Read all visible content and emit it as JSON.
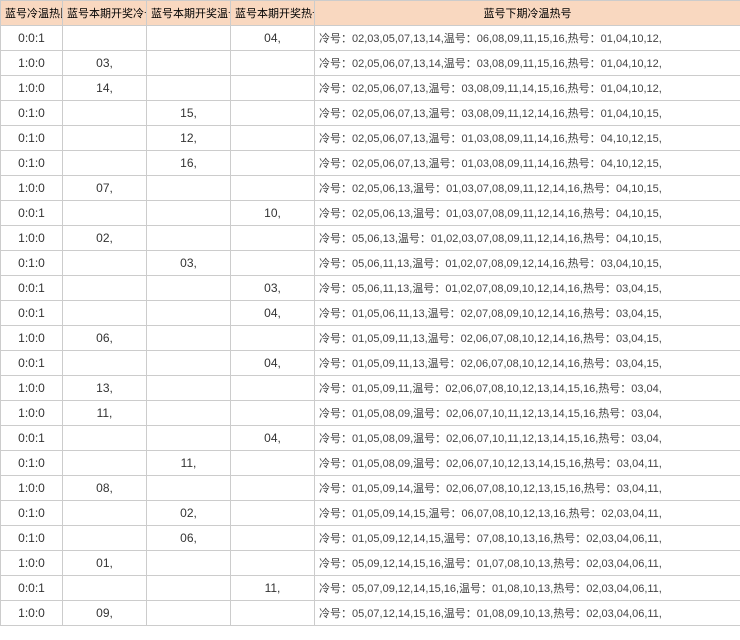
{
  "columns": [
    "蓝号冷温热比",
    "蓝号本期开奖冷号",
    "蓝号本期开奖温号",
    "蓝号本期开奖热号",
    "蓝号下期冷温热号"
  ],
  "rows": [
    {
      "ratio": "0:0:1",
      "cold": "",
      "warm": "",
      "hot": "04,",
      "analysis": "冷号：02,03,05,07,13,14,温号：06,08,09,11,15,16,热号：01,04,10,12,"
    },
    {
      "ratio": "1:0:0",
      "cold": "03,",
      "warm": "",
      "hot": "",
      "analysis": "冷号：02,05,06,07,13,14,温号：03,08,09,11,15,16,热号：01,04,10,12,"
    },
    {
      "ratio": "1:0:0",
      "cold": "14,",
      "warm": "",
      "hot": "",
      "analysis": "冷号：02,05,06,07,13,温号：03,08,09,11,14,15,16,热号：01,04,10,12,"
    },
    {
      "ratio": "0:1:0",
      "cold": "",
      "warm": "15,",
      "hot": "",
      "analysis": "冷号：02,05,06,07,13,温号：03,08,09,11,12,14,16,热号：01,04,10,15,"
    },
    {
      "ratio": "0:1:0",
      "cold": "",
      "warm": "12,",
      "hot": "",
      "analysis": "冷号：02,05,06,07,13,温号：01,03,08,09,11,14,16,热号：04,10,12,15,"
    },
    {
      "ratio": "0:1:0",
      "cold": "",
      "warm": "16,",
      "hot": "",
      "analysis": "冷号：02,05,06,07,13,温号：01,03,08,09,11,14,16,热号：04,10,12,15,"
    },
    {
      "ratio": "1:0:0",
      "cold": "07,",
      "warm": "",
      "hot": "",
      "analysis": "冷号：02,05,06,13,温号：01,03,07,08,09,11,12,14,16,热号：04,10,15,"
    },
    {
      "ratio": "0:0:1",
      "cold": "",
      "warm": "",
      "hot": "10,",
      "analysis": "冷号：02,05,06,13,温号：01,03,07,08,09,11,12,14,16,热号：04,10,15,"
    },
    {
      "ratio": "1:0:0",
      "cold": "02,",
      "warm": "",
      "hot": "",
      "analysis": "冷号：05,06,13,温号：01,02,03,07,08,09,11,12,14,16,热号：04,10,15,"
    },
    {
      "ratio": "0:1:0",
      "cold": "",
      "warm": "03,",
      "hot": "",
      "analysis": "冷号：05,06,11,13,温号：01,02,07,08,09,12,14,16,热号：03,04,10,15,"
    },
    {
      "ratio": "0:0:1",
      "cold": "",
      "warm": "",
      "hot": "03,",
      "analysis": "冷号：05,06,11,13,温号：01,02,07,08,09,10,12,14,16,热号：03,04,15,"
    },
    {
      "ratio": "0:0:1",
      "cold": "",
      "warm": "",
      "hot": "04,",
      "analysis": "冷号：01,05,06,11,13,温号：02,07,08,09,10,12,14,16,热号：03,04,15,"
    },
    {
      "ratio": "1:0:0",
      "cold": "06,",
      "warm": "",
      "hot": "",
      "analysis": "冷号：01,05,09,11,13,温号：02,06,07,08,10,12,14,16,热号：03,04,15,"
    },
    {
      "ratio": "0:0:1",
      "cold": "",
      "warm": "",
      "hot": "04,",
      "analysis": "冷号：01,05,09,11,13,温号：02,06,07,08,10,12,14,16,热号：03,04,15,"
    },
    {
      "ratio": "1:0:0",
      "cold": "13,",
      "warm": "",
      "hot": "",
      "analysis": "冷号：01,05,09,11,温号：02,06,07,08,10,12,13,14,15,16,热号：03,04,"
    },
    {
      "ratio": "1:0:0",
      "cold": "11,",
      "warm": "",
      "hot": "",
      "analysis": "冷号：01,05,08,09,温号：02,06,07,10,11,12,13,14,15,16,热号：03,04,"
    },
    {
      "ratio": "0:0:1",
      "cold": "",
      "warm": "",
      "hot": "04,",
      "analysis": "冷号：01,05,08,09,温号：02,06,07,10,11,12,13,14,15,16,热号：03,04,"
    },
    {
      "ratio": "0:1:0",
      "cold": "",
      "warm": "11,",
      "hot": "",
      "analysis": "冷号：01,05,08,09,温号：02,06,07,10,12,13,14,15,16,热号：03,04,11,"
    },
    {
      "ratio": "1:0:0",
      "cold": "08,",
      "warm": "",
      "hot": "",
      "analysis": "冷号：01,05,09,14,温号：02,06,07,08,10,12,13,15,16,热号：03,04,11,"
    },
    {
      "ratio": "0:1:0",
      "cold": "",
      "warm": "02,",
      "hot": "",
      "analysis": "冷号：01,05,09,14,15,温号：06,07,08,10,12,13,16,热号：02,03,04,11,"
    },
    {
      "ratio": "0:1:0",
      "cold": "",
      "warm": "06,",
      "hot": "",
      "analysis": "冷号：01,05,09,12,14,15,温号：07,08,10,13,16,热号：02,03,04,06,11,"
    },
    {
      "ratio": "1:0:0",
      "cold": "01,",
      "warm": "",
      "hot": "",
      "analysis": "冷号：05,09,12,14,15,16,温号：01,07,08,10,13,热号：02,03,04,06,11,"
    },
    {
      "ratio": "0:0:1",
      "cold": "",
      "warm": "",
      "hot": "11,",
      "analysis": "冷号：05,07,09,12,14,15,16,温号：01,08,10,13,热号：02,03,04,06,11,"
    },
    {
      "ratio": "1:0:0",
      "cold": "09,",
      "warm": "",
      "hot": "",
      "analysis": "冷号：05,07,12,14,15,16,温号：01,08,09,10,13,热号：02,03,04,06,11,"
    }
  ]
}
